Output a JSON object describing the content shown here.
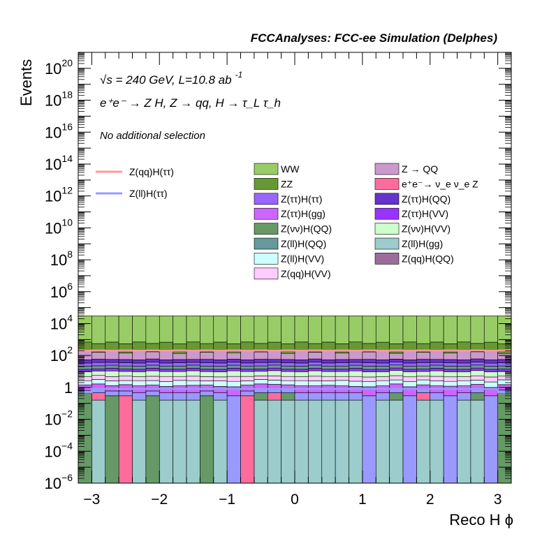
{
  "chart_data": {
    "type": "bar",
    "stacked": true,
    "title": "FCCAnalyses: FCC-ee Simulation (Delphes)",
    "xlabel": "Reco H ϕ",
    "ylabel": "Events",
    "log_y": true,
    "xlim": [
      -3.2,
      3.2
    ],
    "ylim": [
      1e-06,
      1e+21
    ],
    "n_bins": 32,
    "x_ticks": [
      {
        "v": -3,
        "label": "−3"
      },
      {
        "v": -2,
        "label": "−2"
      },
      {
        "v": -1,
        "label": "−1"
      },
      {
        "v": 0,
        "label": "0"
      },
      {
        "v": 1,
        "label": "1"
      },
      {
        "v": 2,
        "label": "2"
      },
      {
        "v": 3,
        "label": "3"
      }
    ],
    "y_ticks": [
      {
        "exp": -6,
        "label": "10",
        "sup": "−6"
      },
      {
        "exp": -4,
        "label": "10",
        "sup": "−4"
      },
      {
        "exp": -2,
        "label": "10",
        "sup": "−2"
      },
      {
        "exp": 0,
        "label": "1",
        "sup": ""
      },
      {
        "exp": 2,
        "label": "10",
        "sup": "2"
      },
      {
        "exp": 4,
        "label": "10",
        "sup": "4"
      },
      {
        "exp": 6,
        "label": "10",
        "sup": "6"
      },
      {
        "exp": 8,
        "label": "10",
        "sup": "8"
      },
      {
        "exp": 10,
        "label": "10",
        "sup": "10"
      },
      {
        "exp": 12,
        "label": "10",
        "sup": "12"
      },
      {
        "exp": 14,
        "label": "10",
        "sup": "14"
      },
      {
        "exp": 16,
        "label": "10",
        "sup": "16"
      },
      {
        "exp": 18,
        "label": "10",
        "sup": "18"
      },
      {
        "exp": 20,
        "label": "10",
        "sup": "20"
      }
    ],
    "annotations": {
      "energy_main": "√s = 240 GeV, L=10.8 ab",
      "energy_sup": "-1",
      "process": "e⁺e⁻ → Z H, Z → qq, H → τ_L τ_h",
      "selection": "No additional selection"
    },
    "legend_placement": "top-right",
    "series": [
      {
        "name": "Z(ll)H(gg)",
        "color": "#9ccccc",
        "values": [
          0,
          0.16,
          0,
          0,
          0.16,
          0,
          0.16,
          0.16,
          0.16,
          0,
          0.16,
          0,
          0,
          0.16,
          0.16,
          0.16,
          0.16,
          0.16,
          0.16,
          0.16,
          0.16,
          0,
          0.16,
          0.16,
          0,
          0.16,
          0.16,
          0,
          0.16,
          0.16,
          0,
          0
        ]
      },
      {
        "name": "Z(qq)H(QQ)",
        "color": "#9c6c9c",
        "values": [
          0,
          0,
          0,
          0,
          0,
          0,
          0,
          0,
          0,
          0,
          0,
          0,
          0,
          0,
          0,
          0,
          0,
          0,
          0,
          0,
          0,
          0,
          0,
          0,
          0,
          0.0001,
          0,
          0,
          0,
          0,
          0,
          0
        ]
      },
      {
        "name": "e⁺e⁻ → ν_e ν_e Z",
        "color": "#ff6c9c",
        "values": [
          0,
          0.3,
          0,
          0.3,
          0,
          0,
          0,
          0,
          0,
          0,
          0,
          0,
          0.3,
          0,
          0.3,
          0,
          0,
          0,
          0,
          0,
          0,
          0,
          0,
          0,
          0,
          0.3,
          0,
          0,
          0,
          0,
          0,
          0
        ]
      },
      {
        "name": "Z(νν)H(QQ)",
        "color": "#669966",
        "values": [
          0.45,
          0,
          0.3,
          0,
          0,
          0.3,
          0,
          0,
          0,
          0.3,
          0,
          0,
          0,
          0.3,
          0,
          0.3,
          0,
          0,
          0,
          0,
          0,
          0,
          0,
          0.3,
          0,
          0,
          0,
          0,
          0,
          0.3,
          0,
          0.5
        ]
      },
      {
        "name": "Z(ll)H(ττ)",
        "color": "#9999ff",
        "values": [
          0.2,
          0.3,
          0.3,
          0.3,
          0.3,
          0.3,
          0.3,
          0.3,
          0.3,
          0.3,
          0.3,
          0.3,
          0.3,
          0.3,
          0.3,
          0.3,
          0.3,
          0.3,
          0.3,
          0.3,
          0.3,
          0.3,
          0.3,
          0.3,
          0.3,
          0.3,
          0.3,
          0.3,
          0.3,
          0.3,
          0.3,
          0.2
        ]
      },
      {
        "name": "Z(ττ)H(gg)",
        "color": "#cc66ff",
        "values": [
          0.8,
          0.9,
          0.7,
          0.9,
          0.8,
          0.8,
          0.7,
          0.8,
          0.9,
          0.8,
          0.7,
          0.8,
          0.8,
          0.9,
          0.8,
          0.7,
          0.8,
          0.8,
          0.9,
          0.8,
          0.7,
          0.8,
          0.8,
          0.9,
          0.8,
          0.7,
          0.8,
          0.9,
          0.8,
          0.8,
          0.7,
          0.8
        ]
      },
      {
        "name": "Z(ll)H(VV)",
        "color": "#ccffff",
        "values": [
          1.2,
          1.5,
          1.3,
          1.2,
          1.4,
          1.3,
          1.2,
          1.5,
          1.3,
          1.2,
          1.4,
          1.3,
          1.2,
          1.5,
          1.3,
          1.2,
          1.4,
          1.3,
          1.2,
          1.5,
          1.3,
          1.2,
          1.4,
          1.3,
          1.2,
          1.5,
          1.3,
          1.2,
          1.4,
          1.3,
          1.2,
          1.5
        ]
      },
      {
        "name": "Z(qq)H(VV)",
        "color": "#ffccff",
        "values": [
          2,
          2.5,
          2.2,
          2.4,
          2,
          2.3,
          2.5,
          2.1,
          2.4,
          2.2,
          2,
          2.5,
          2.3,
          2.1,
          2.4,
          2.2,
          2,
          2.5,
          2.3,
          2.1,
          2.4,
          2.2,
          2,
          2.5,
          2.3,
          2.1,
          2.4,
          2.2,
          2,
          2.5,
          2.3,
          2.1
        ]
      },
      {
        "name": "Z(νν)H(VV)",
        "color": "#ccffcc",
        "values": [
          5,
          5,
          6,
          5,
          5,
          6,
          5,
          5,
          6,
          5,
          5,
          6,
          5,
          5,
          6,
          5,
          5,
          6,
          5,
          5,
          6,
          5,
          5,
          6,
          5,
          5,
          6,
          5,
          5,
          6,
          5,
          5
        ]
      },
      {
        "name": "Z(ττ)H(VV)",
        "color": "#9933ff",
        "values": [
          4,
          4,
          5,
          4,
          4,
          5,
          4,
          4,
          5,
          4,
          4,
          5,
          4,
          4,
          5,
          4,
          4,
          5,
          4,
          4,
          5,
          4,
          4,
          5,
          4,
          4,
          5,
          4,
          4,
          5,
          4,
          4
        ]
      },
      {
        "name": "Z(ll)H(QQ)",
        "color": "#669999",
        "values": [
          8,
          8,
          9,
          8,
          8,
          9,
          8,
          8,
          9,
          8,
          8,
          9,
          8,
          8,
          9,
          8,
          8,
          9,
          8,
          8,
          9,
          8,
          8,
          9,
          8,
          8,
          9,
          8,
          8,
          9,
          8,
          8
        ]
      },
      {
        "name": "Z(ττ)H(ττ)",
        "color": "#9966ff",
        "values": [
          12,
          14,
          12,
          13,
          12,
          14,
          12,
          13,
          12,
          14,
          12,
          13,
          12,
          14,
          12,
          13,
          12,
          14,
          12,
          13,
          12,
          14,
          12,
          13,
          12,
          14,
          12,
          13,
          12,
          14,
          12,
          13
        ]
      },
      {
        "name": "Z(ττ)H(QQ)",
        "color": "#6633cc",
        "values": [
          20,
          22,
          20,
          21,
          20,
          22,
          20,
          21,
          20,
          22,
          20,
          21,
          20,
          22,
          20,
          21,
          20,
          22,
          20,
          21,
          20,
          22,
          20,
          21,
          20,
          22,
          20,
          21,
          20,
          22,
          20,
          21
        ]
      },
      {
        "name": "Z → QQ",
        "color": "#cc99cc",
        "values": [
          150,
          100,
          140,
          90,
          150,
          110,
          130,
          80,
          150,
          100,
          140,
          90,
          150,
          110,
          130,
          80,
          150,
          100,
          140,
          90,
          150,
          110,
          130,
          80,
          150,
          100,
          140,
          90,
          150,
          110,
          130,
          80
        ]
      },
      {
        "name": "ZZ",
        "color": "#669933",
        "values": [
          500,
          400,
          500,
          400,
          500,
          400,
          500,
          400,
          500,
          400,
          500,
          400,
          500,
          400,
          500,
          400,
          500,
          400,
          500,
          400,
          500,
          400,
          500,
          400,
          500,
          400,
          500,
          400,
          500,
          400,
          500,
          400
        ]
      },
      {
        "name": "WW",
        "color": "#99cc66",
        "values": [
          30000,
          30000,
          30000,
          30000,
          30000,
          30000,
          30000,
          30000,
          30000,
          30000,
          30000,
          30000,
          30000,
          30000,
          30000,
          30000,
          30000,
          30000,
          30000,
          30000,
          30000,
          30000,
          30000,
          30000,
          30000,
          30000,
          30000,
          30000,
          30000,
          30000,
          30000,
          30000
        ]
      }
    ],
    "signals": [
      {
        "name": "Z(qq)H(ττ)",
        "color": "#ff9999",
        "values": [
          200,
          210,
          200,
          210,
          200,
          210,
          200,
          210,
          200,
          210,
          200,
          210,
          200,
          210,
          200,
          210,
          200,
          210,
          200,
          210,
          200,
          210,
          200,
          210,
          200,
          210,
          200,
          210,
          200,
          210,
          200,
          210
        ]
      },
      {
        "name": "Z(ll)H(ττ)",
        "color": "#9999ff",
        "values": [
          0.5,
          0.8,
          0.8,
          0.8,
          0.8,
          0.8,
          0.8,
          0.8,
          0.8,
          0.8,
          0.8,
          0.8,
          0.8,
          0.8,
          0.8,
          0.8,
          0.8,
          0.8,
          0.8,
          0.8,
          0.8,
          0.8,
          0.8,
          0.8,
          0.8,
          0.8,
          0.8,
          0.8,
          0.8,
          0.8,
          0.8,
          0.5
        ]
      }
    ],
    "legend_left": [
      {
        "label": "Z(qq)H(ττ)",
        "color": "#ff9999"
      },
      {
        "label": "Z(ll)H(ττ)",
        "color": "#9999ff"
      }
    ],
    "legend_col1": [
      {
        "label": "WW",
        "color": "#99cc66"
      },
      {
        "label": "ZZ",
        "color": "#669933"
      },
      {
        "label": "Z(ττ)H(ττ)",
        "color": "#9966ff"
      },
      {
        "label": "Z(ττ)H(gg)",
        "color": "#cc66ff"
      },
      {
        "label": "Z(νν)H(QQ)",
        "color": "#669966"
      },
      {
        "label": "Z(ll)H(QQ)",
        "color": "#669999"
      },
      {
        "label": "Z(ll)H(VV)",
        "color": "#ccffff"
      },
      {
        "label": "Z(qq)H(VV)",
        "color": "#ffccff"
      }
    ],
    "legend_col2": [
      {
        "label": "Z → QQ",
        "color": "#cc99cc"
      },
      {
        "label": "e⁺e⁻→ ν_e ν_e Z",
        "color": "#ff6c9c"
      },
      {
        "label": "Z(ττ)H(QQ)",
        "color": "#6633cc"
      },
      {
        "label": "Z(ττ)H(VV)",
        "color": "#9933ff"
      },
      {
        "label": "Z(νν)H(VV)",
        "color": "#ccffcc"
      },
      {
        "label": "Z(ll)H(gg)",
        "color": "#9ccccc"
      },
      {
        "label": "Z(qq)H(QQ)",
        "color": "#9c6c9c"
      }
    ]
  }
}
